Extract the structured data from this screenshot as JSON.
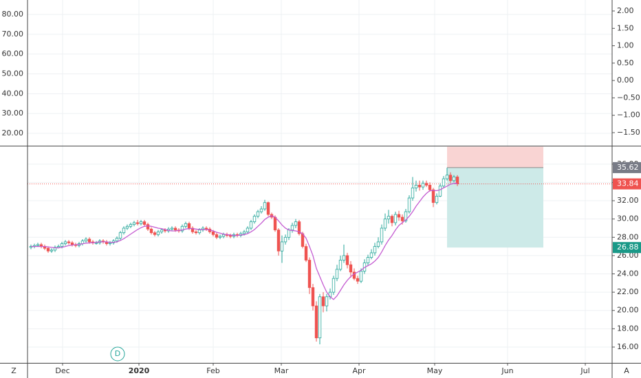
{
  "chart_data": [
    {
      "type": "indicator",
      "ylim": [
        13.76,
        87.28
      ],
      "yticks": [
        {
          "value": 20,
          "label": "20.00"
        },
        {
          "value": 30,
          "label": "30.00"
        },
        {
          "value": 40,
          "label": "40.00"
        },
        {
          "value": 50,
          "label": "50.00"
        },
        {
          "value": 60,
          "label": "60.00"
        },
        {
          "value": 70,
          "label": "70.00"
        },
        {
          "value": 80,
          "label": "80.00"
        }
      ],
      "y2lim": [
        -1.876,
        2.316
      ],
      "y2ticks": [
        {
          "value": 2,
          "label": "2.00"
        },
        {
          "value": 1.5,
          "label": "1.50"
        },
        {
          "value": 1,
          "label": "1.00"
        },
        {
          "value": 0.5,
          "label": "0.50"
        },
        {
          "value": 0,
          "label": "0.00"
        },
        {
          "value": -0.5,
          "label": "−0.50"
        },
        {
          "value": -1,
          "label": "−1.00"
        },
        {
          "value": -1.5,
          "label": "−1.50"
        }
      ],
      "grid": true
    },
    {
      "type": "candlestick",
      "up_color": "#26a69a",
      "down_color": "#ef5350",
      "ma_color": "#c45bd1",
      "xlim": [
        -1,
        169
      ],
      "xticks": [
        {
          "value": 9.2,
          "label": "Dec"
        },
        {
          "value": 31.4,
          "label": "2020"
        },
        {
          "value": 53,
          "label": "Feb"
        },
        {
          "value": 72.8,
          "label": "Mar"
        },
        {
          "value": 95.4,
          "label": "Apr"
        },
        {
          "value": 117.4,
          "label": "May"
        },
        {
          "value": 138.6,
          "label": "Jun"
        },
        {
          "value": 161.2,
          "label": "Jul"
        }
      ],
      "ylim": [
        14.27,
        37.94
      ],
      "yticks": [
        {
          "value": 16,
          "label": "16.00"
        },
        {
          "value": 18,
          "label": "18.00"
        },
        {
          "value": 20,
          "label": "20.00"
        },
        {
          "value": 22,
          "label": "22.00"
        },
        {
          "value": 24,
          "label": "24.00"
        },
        {
          "value": 26,
          "label": "26.00"
        },
        {
          "value": 28,
          "label": "28.00"
        },
        {
          "value": 30,
          "label": "30.00"
        },
        {
          "value": 32,
          "label": "32.00"
        },
        {
          "value": 34,
          "label": "34.00"
        },
        {
          "value": 36,
          "label": "36.00"
        }
      ],
      "grid": true,
      "open": [
        26.9,
        27.0,
        27.1,
        27.2,
        27.0,
        26.8,
        26.5,
        26.6,
        26.9,
        27.0,
        27.3,
        27.5,
        27.4,
        27.2,
        27.1,
        27.3,
        27.6,
        27.8,
        27.5,
        27.4,
        27.4,
        27.6,
        27.5,
        27.3,
        27.4,
        27.6,
        27.9,
        28.5,
        29.0,
        29.2,
        29.4,
        29.6,
        29.5,
        29.7,
        29.4,
        28.9,
        28.5,
        28.3,
        28.6,
        28.8,
        28.7,
        28.9,
        29.0,
        28.8,
        28.7,
        29.2,
        29.5,
        29.0,
        28.6,
        28.5,
        28.8,
        29.0,
        28.9,
        28.6,
        28.3,
        28.0,
        28.1,
        28.3,
        28.2,
        28.1,
        28.3,
        28.2,
        28.4,
        28.6,
        29.0,
        29.7,
        30.3,
        30.8,
        31.1,
        31.8,
        30.5,
        30.2,
        28.8,
        26.5,
        27.5,
        28.0,
        28.8,
        29.3,
        29.7,
        28.4,
        27.0,
        25.5,
        22.5,
        20.5,
        17.0,
        21.5,
        20.5,
        21.5,
        22.0,
        23.5,
        24.5,
        25.5,
        26.0,
        25.0,
        24.2,
        23.5,
        23.2,
        24.3,
        25.2,
        25.8,
        26.3,
        27.0,
        27.5,
        29.0,
        30.0,
        30.3,
        29.6,
        30.5,
        30.2,
        29.8,
        30.8,
        32.3,
        33.4,
        33.7,
        33.5,
        33.9,
        33.7,
        33.2,
        31.8,
        32.5,
        33.6,
        34.4,
        34.8,
        34.2,
        34.6
      ],
      "high": [
        27.2,
        27.3,
        27.4,
        27.4,
        27.2,
        27.0,
        26.8,
        27.1,
        27.2,
        27.5,
        27.7,
        27.7,
        27.6,
        27.4,
        27.5,
        27.8,
        28.0,
        28.0,
        27.7,
        27.6,
        27.8,
        27.8,
        27.7,
        27.6,
        27.8,
        28.1,
        28.7,
        29.2,
        29.4,
        29.6,
        29.8,
        29.9,
        29.9,
        29.9,
        29.6,
        29.1,
        28.7,
        28.8,
        29.0,
        29.0,
        29.1,
        29.2,
        29.2,
        29.0,
        29.4,
        29.7,
        29.7,
        29.2,
        28.8,
        29.0,
        29.2,
        29.2,
        29.1,
        28.8,
        28.5,
        28.3,
        28.5,
        28.5,
        28.4,
        28.5,
        28.5,
        28.6,
        28.8,
        29.2,
        29.9,
        30.5,
        31.0,
        31.4,
        32.1,
        31.9,
        30.7,
        30.4,
        29.0,
        28.2,
        28.3,
        29.0,
        29.6,
        30.0,
        29.9,
        28.6,
        27.3,
        25.8,
        22.9,
        21.0,
        21.8,
        22.0,
        21.8,
        22.4,
        23.8,
        25.0,
        26.0,
        27.2,
        26.3,
        25.4,
        24.6,
        23.8,
        24.6,
        25.6,
        26.1,
        26.7,
        27.4,
        28.0,
        29.4,
        30.6,
        31.0,
        30.5,
        30.8,
        30.9,
        30.5,
        31.1,
        32.6,
        34.6,
        34.2,
        34.2,
        34.2,
        34.2,
        34.0,
        33.4,
        32.8,
        33.9,
        34.7,
        35.6,
        35.1,
        34.8,
        34.8
      ],
      "low": [
        26.7,
        26.8,
        27.0,
        26.8,
        26.6,
        26.3,
        26.3,
        26.4,
        26.8,
        26.8,
        27.1,
        27.2,
        27.0,
        26.9,
        26.9,
        27.1,
        27.4,
        27.3,
        27.2,
        27.2,
        27.2,
        27.3,
        27.1,
        27.1,
        27.2,
        27.4,
        27.7,
        28.3,
        28.8,
        29.0,
        29.2,
        29.3,
        29.3,
        29.2,
        28.7,
        28.3,
        28.1,
        28.1,
        28.4,
        28.5,
        28.5,
        28.7,
        28.6,
        28.5,
        28.5,
        29.0,
        28.8,
        28.4,
        28.3,
        28.3,
        28.6,
        28.7,
        28.4,
        28.1,
        27.8,
        27.8,
        27.9,
        28.0,
        27.9,
        27.9,
        28.0,
        28.0,
        28.2,
        28.4,
        28.8,
        29.5,
        30.1,
        30.6,
        30.9,
        30.3,
        30.0,
        28.6,
        26.0,
        25.2,
        27.2,
        27.7,
        28.5,
        29.0,
        28.2,
        26.8,
        25.3,
        21.8,
        20.0,
        16.6,
        16.3,
        19.8,
        19.9,
        21.2,
        21.7,
        23.2,
        24.3,
        25.2,
        24.6,
        23.6,
        23.3,
        22.9,
        23.0,
        24.0,
        24.9,
        25.6,
        26.0,
        26.8,
        27.2,
        28.7,
        29.5,
        29.2,
        29.3,
        29.8,
        29.4,
        29.6,
        30.6,
        32.0,
        33.0,
        33.1,
        33.2,
        33.5,
        33.0,
        31.3,
        31.6,
        32.4,
        33.4,
        34.2,
        33.9,
        34.0,
        33.6
      ],
      "close": [
        27.0,
        27.1,
        27.2,
        27.0,
        26.8,
        26.5,
        26.6,
        26.9,
        27.0,
        27.3,
        27.5,
        27.4,
        27.2,
        27.1,
        27.3,
        27.6,
        27.8,
        27.5,
        27.4,
        27.4,
        27.6,
        27.5,
        27.3,
        27.4,
        27.6,
        27.9,
        28.5,
        29.0,
        29.2,
        29.4,
        29.6,
        29.5,
        29.7,
        29.4,
        28.9,
        28.5,
        28.3,
        28.6,
        28.8,
        28.7,
        28.9,
        29.0,
        28.8,
        28.7,
        29.2,
        29.5,
        29.0,
        28.6,
        28.5,
        28.8,
        29.0,
        28.9,
        28.6,
        28.3,
        28.0,
        28.1,
        28.3,
        28.2,
        28.1,
        28.3,
        28.2,
        28.4,
        28.6,
        29.0,
        29.7,
        30.3,
        30.8,
        31.1,
        31.8,
        30.5,
        30.2,
        28.8,
        26.5,
        27.5,
        28.0,
        28.8,
        29.3,
        29.7,
        28.4,
        27.0,
        25.5,
        22.5,
        20.5,
        17.0,
        21.5,
        20.5,
        21.5,
        22.0,
        23.5,
        24.5,
        25.5,
        26.0,
        25.0,
        24.2,
        23.5,
        23.2,
        24.3,
        25.2,
        25.8,
        26.3,
        27.0,
        27.5,
        29.0,
        30.0,
        30.3,
        29.6,
        30.5,
        30.2,
        29.8,
        30.8,
        32.3,
        33.4,
        33.7,
        33.5,
        33.9,
        33.7,
        33.2,
        31.8,
        32.5,
        33.6,
        34.4,
        34.8,
        34.2,
        34.6,
        33.84
      ],
      "ma": [
        27.0,
        27.0,
        27.0,
        27.0,
        27.0,
        26.95,
        26.9,
        26.85,
        26.85,
        26.9,
        27.0,
        27.1,
        27.15,
        27.2,
        27.2,
        27.3,
        27.35,
        27.4,
        27.4,
        27.45,
        27.5,
        27.5,
        27.5,
        27.45,
        27.45,
        27.5,
        27.65,
        27.85,
        28.1,
        28.35,
        28.6,
        28.85,
        29.05,
        29.2,
        29.25,
        29.2,
        29.1,
        29.0,
        28.95,
        28.85,
        28.75,
        28.7,
        28.7,
        28.75,
        28.8,
        28.9,
        28.95,
        28.95,
        28.9,
        28.85,
        28.85,
        28.85,
        28.8,
        28.7,
        28.55,
        28.45,
        28.35,
        28.3,
        28.25,
        28.2,
        28.2,
        28.25,
        28.3,
        28.4,
        28.6,
        28.85,
        29.2,
        29.55,
        29.95,
        30.2,
        30.35,
        30.2,
        29.8,
        29.35,
        29.0,
        28.8,
        28.75,
        28.7,
        28.6,
        28.4,
        27.9,
        27.0,
        26.0,
        24.6,
        23.7,
        22.8,
        22.0,
        21.5,
        21.2,
        21.6,
        22.2,
        22.8,
        23.3,
        23.7,
        24.0,
        24.2,
        24.4,
        24.7,
        24.9,
        25.1,
        25.4,
        25.8,
        26.4,
        27.1,
        27.7,
        28.2,
        28.8,
        29.3,
        29.6,
        29.9,
        30.3,
        30.8,
        31.4,
        31.9,
        32.4,
        32.8,
        33.1,
        33.1,
        33.1,
        33.2,
        33.4,
        33.6,
        33.8,
        33.9,
        33.9
      ],
      "last_price": 33.84,
      "position": {
        "x": [
          121,
          149
        ],
        "stop": 37.9,
        "entry": 35.62,
        "target": 26.88
      },
      "event_marker": {
        "x": 25.2,
        "label": "D"
      },
      "corner_labels": [
        "Z",
        "A"
      ]
    }
  ]
}
